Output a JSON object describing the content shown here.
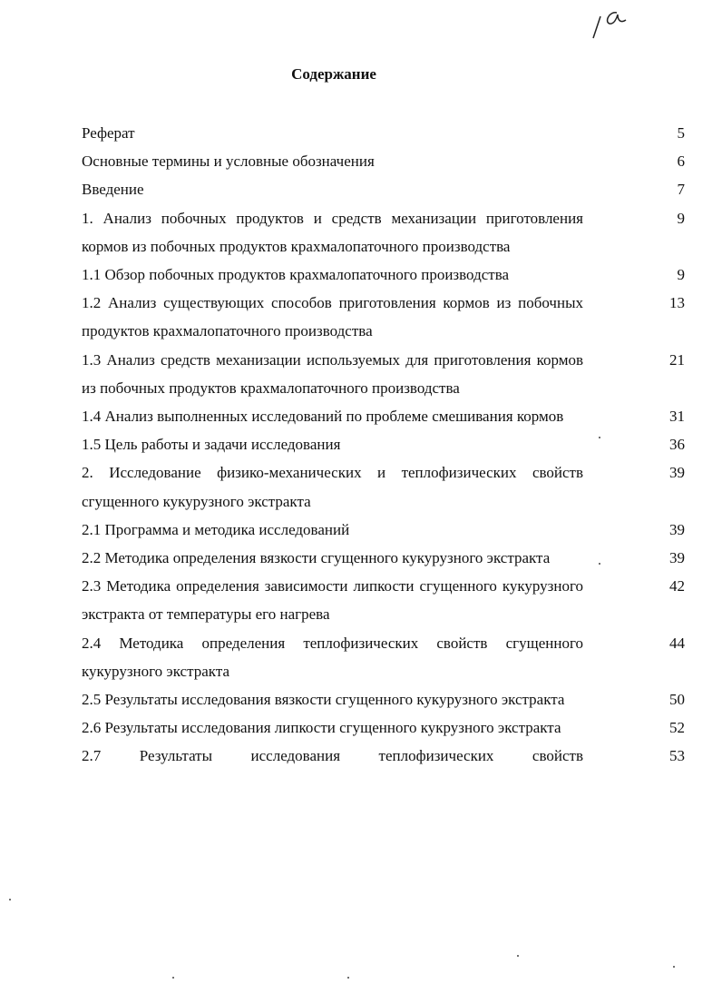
{
  "handwritten_mark": "1a",
  "title": "Содержание",
  "entries": [
    {
      "text": "Реферат",
      "page": "5"
    },
    {
      "text": "Основные термины и условные обозначения",
      "page": "6"
    },
    {
      "text": "Введение",
      "page": "7"
    },
    {
      "text": "1. Анализ побочных продуктов и средств механизации приготовления кормов из побочных продуктов крахмалопаточного производства",
      "page": "9"
    },
    {
      "text": "1.1 Обзор побочных продуктов крахмалопаточного производства",
      "page": "9"
    },
    {
      "text": "1.2 Анализ существующих способов приготовления кормов из побочных продуктов крахмалопаточного производства",
      "page": "13"
    },
    {
      "text": "1.3 Анализ средств механизации используемых для приготовления кормов из побочных продуктов крахмалопаточного производства",
      "page": "21"
    },
    {
      "text": "1.4 Анализ выполненных исследований по проблеме смешивания кормов",
      "page": "31"
    },
    {
      "text": "1.5 Цель работы и задачи исследования",
      "page": "36"
    },
    {
      "text": "2. Исследование физико-механических и теплофизических свойств сгущенного кукурузного экстракта",
      "page": "39"
    },
    {
      "text": "2.1 Программа и методика исследований",
      "page": "39"
    },
    {
      "text": "2.2 Методика определения вязкости сгущенного кукурузного экстракта",
      "page": "39"
    },
    {
      "text": "2.3 Методика определения зависимости липкости сгущенного кукурузного экстракта от температуры его нагрева",
      "page": "42"
    },
    {
      "text": "2.4 Методика определения теплофизических свойств сгущенного кукурузного экстракта",
      "page": "44"
    },
    {
      "text": "2.5 Результаты исследования вязкости сгущенного кукурузного экстракта",
      "page": "50"
    },
    {
      "text": "2.6 Результаты исследования липкости сгущенного кукрузного экстракта",
      "page": "52"
    },
    {
      "text": "2.7 Результаты исследования теплофизических свойств",
      "page": "53"
    }
  ]
}
